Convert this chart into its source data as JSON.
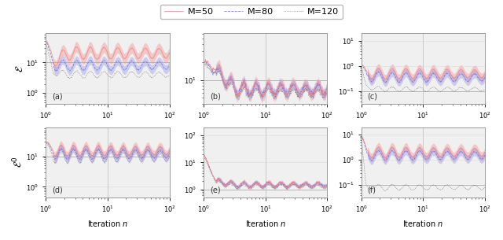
{
  "legend_labels": [
    "M=50",
    "M=80",
    "M=120"
  ],
  "colors_solid": [
    "#f08080",
    "#7070e0",
    "#555555"
  ],
  "colors_fill": [
    "#f08080",
    "#8888e8",
    "#888888"
  ],
  "linestyles": [
    "-",
    "--",
    ":"
  ],
  "linewidths": [
    0.6,
    0.6,
    0.5
  ],
  "subplot_labels": [
    "(a)",
    "(b)",
    "(c)",
    "(d)",
    "(e)",
    "(f)"
  ],
  "row0_ylabel": "$\\mathcal{E}$",
  "row1_ylabel": "$\\mathcal{E}^0$",
  "xlabel": "Iteration $n$",
  "subplots": [
    {
      "label": "(a)",
      "ylim_log": [
        -0.35,
        1.95
      ],
      "hline": 10,
      "vline": 10
    },
    {
      "label": "(b)",
      "ylim_log": [
        0.6,
        1.78
      ],
      "hline": 10,
      "vline": 10
    },
    {
      "label": "(c)",
      "ylim_log": [
        -1.5,
        1.3
      ],
      "hline": 0.1,
      "vline": 10
    },
    {
      "label": "(d)",
      "ylim_log": [
        -0.35,
        1.95
      ],
      "hline": 10,
      "vline": 10
    },
    {
      "label": "(e)",
      "ylim_log": [
        -0.3,
        2.3
      ],
      "hline": 1,
      "vline": 10
    },
    {
      "label": "(f)",
      "ylim_log": [
        -1.5,
        1.3
      ],
      "hline": 0.1,
      "vline": 10
    }
  ],
  "bg_color": "#f0f0f0",
  "grid_color": "#cccccc"
}
